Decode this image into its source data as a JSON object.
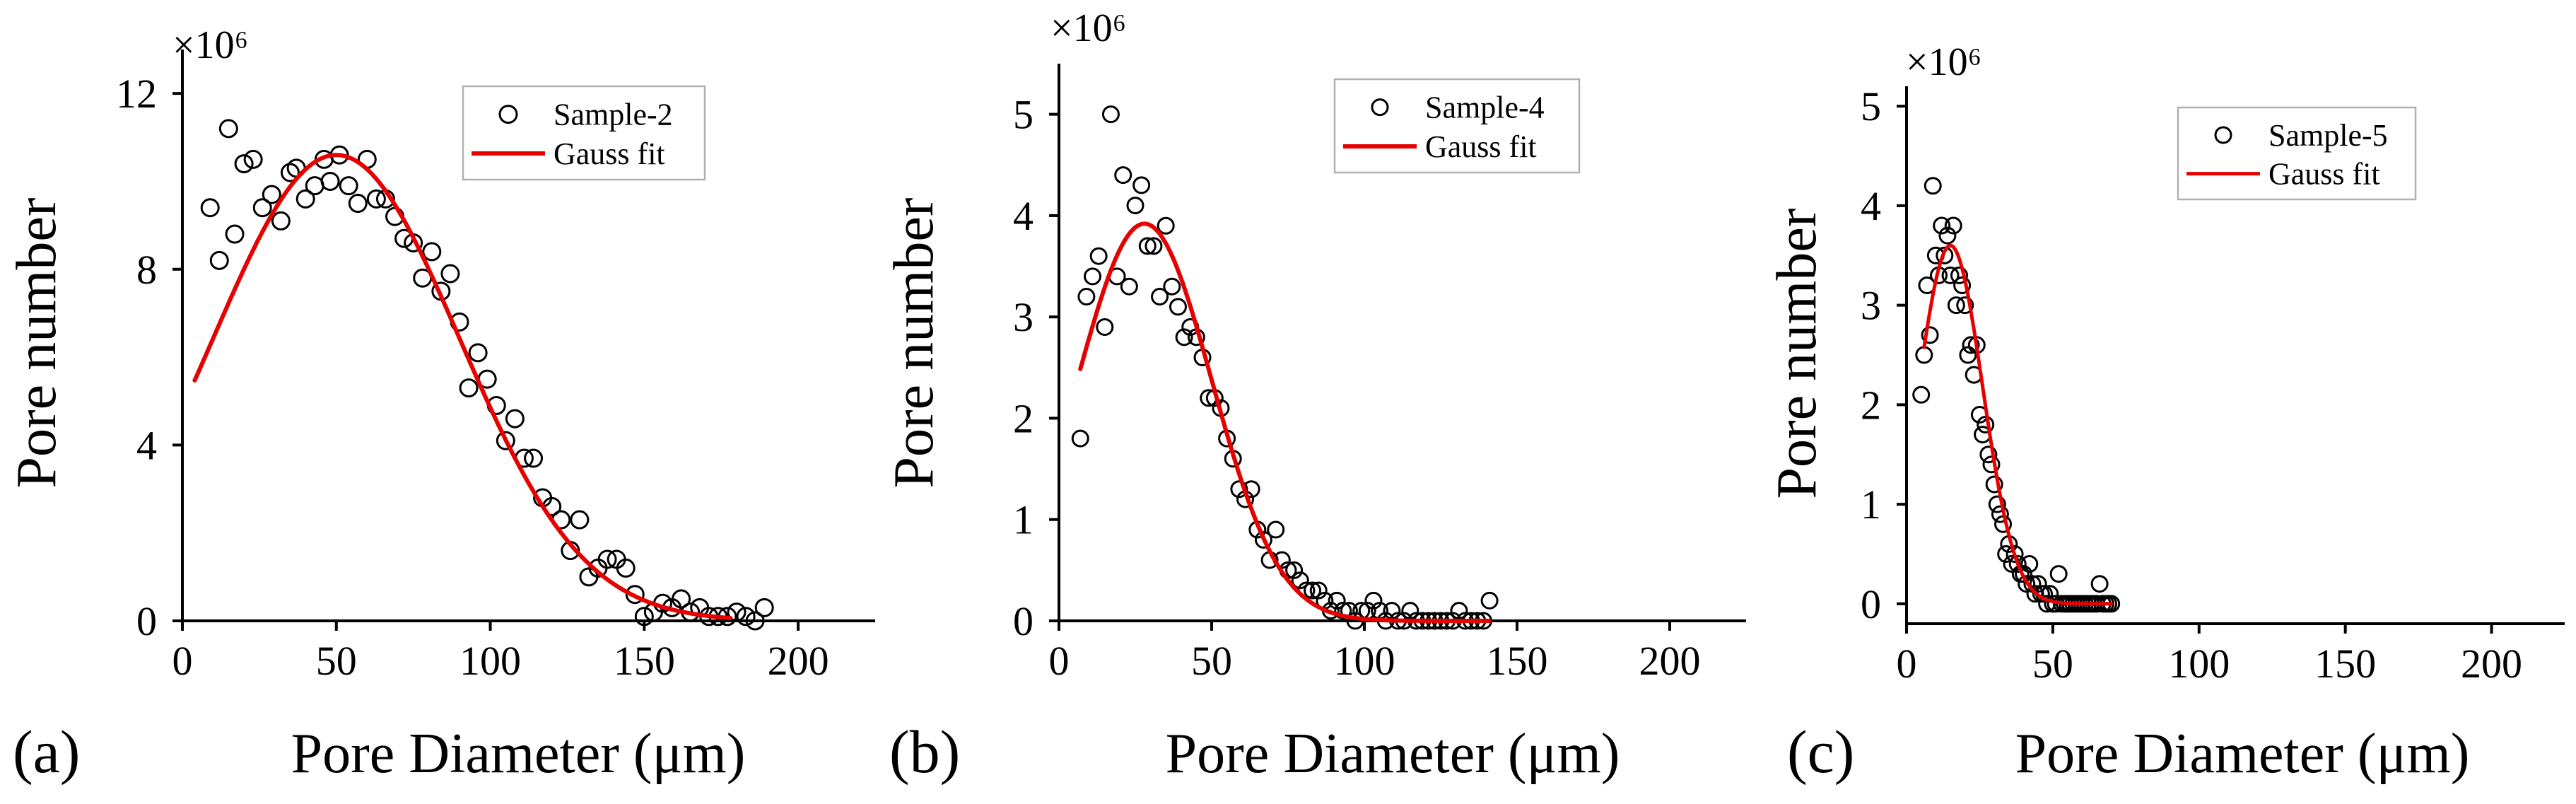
{
  "figure": {
    "colors": {
      "fit": "#e60000",
      "points": "#000000",
      "background": "#ffffff"
    }
  },
  "chart_data": [
    {
      "type": "scatter",
      "panel_label": "(a)",
      "xlabel": "Pore Diameter (μm)",
      "ylabel": "Pore number",
      "scale_label": "×10⁶",
      "xlim": [
        0,
        225
      ],
      "ylim": [
        0,
        13
      ],
      "xticks": [
        0,
        50,
        100,
        150,
        200
      ],
      "yticks": [
        0,
        4,
        8,
        12
      ],
      "legend": [
        "Sample-2",
        "Gauss fit"
      ],
      "legend_position": "top-right",
      "fit": {
        "amplitude": 10.6,
        "mean": 50,
        "sigma": 40,
        "x_start": 4,
        "x_end": 178
      },
      "series": [
        {
          "name": "Sample-2",
          "x": [
            9,
            12,
            15,
            17,
            20,
            23,
            26,
            29,
            32,
            35,
            37,
            40,
            43,
            46,
            48,
            51,
            54,
            57,
            60,
            63,
            66,
            69,
            72,
            75,
            78,
            81,
            84,
            87,
            90,
            93,
            96,
            99,
            102,
            105,
            108,
            111,
            114,
            117,
            120,
            123,
            126,
            129,
            132,
            135,
            138,
            141,
            144,
            147,
            150,
            153,
            156,
            159,
            162,
            165,
            168,
            171,
            174,
            177,
            180,
            183,
            186,
            189
          ],
          "y": [
            9.4,
            8.2,
            11.2,
            8.8,
            10.4,
            10.5,
            9.4,
            9.7,
            9.1,
            10.2,
            10.3,
            9.6,
            9.9,
            10.5,
            10.0,
            10.6,
            9.9,
            9.5,
            10.5,
            9.6,
            9.6,
            9.2,
            8.7,
            8.6,
            7.8,
            8.4,
            7.5,
            7.9,
            6.8,
            5.3,
            6.1,
            5.5,
            4.9,
            4.1,
            4.6,
            3.7,
            3.7,
            2.8,
            2.6,
            2.3,
            1.6,
            2.3,
            1.0,
            1.2,
            1.4,
            1.4,
            1.2,
            0.6,
            0.1,
            0.2,
            0.4,
            0.3,
            0.5,
            0.2,
            0.3,
            0.1,
            0.1,
            0.1,
            0.2,
            0.1,
            0.0,
            0.3
          ]
        }
      ]
    },
    {
      "type": "scatter",
      "panel_label": "(b)",
      "xlabel": "Pore Diameter (μm)",
      "ylabel": "Pore number",
      "scale_label": "×10⁶",
      "xlim": [
        0,
        225
      ],
      "ylim": [
        0,
        5.5
      ],
      "xticks": [
        0,
        50,
        100,
        150,
        200
      ],
      "yticks": [
        0,
        1,
        2,
        3,
        4,
        5
      ],
      "legend": [
        "Sample-4",
        "Gauss fit"
      ],
      "legend_position": "top-right",
      "fit": {
        "amplitude": 3.92,
        "mean": 28,
        "sigma": 22,
        "x_start": 7,
        "x_end": 141
      },
      "series": [
        {
          "name": "Sample-4",
          "x": [
            7,
            9,
            11,
            13,
            15,
            17,
            19,
            21,
            23,
            25,
            27,
            29,
            31,
            33,
            35,
            37,
            39,
            41,
            43,
            45,
            47,
            49,
            51,
            53,
            55,
            57,
            59,
            61,
            63,
            65,
            67,
            69,
            71,
            73,
            75,
            77,
            79,
            81,
            83,
            85,
            87,
            89,
            91,
            93,
            95,
            97,
            99,
            101,
            103,
            105,
            107,
            109,
            111,
            113,
            115,
            117,
            119,
            121,
            123,
            125,
            127,
            129,
            131,
            133,
            135,
            137,
            139,
            141
          ],
          "y": [
            1.8,
            3.2,
            3.4,
            3.6,
            2.9,
            5.0,
            3.4,
            4.4,
            3.3,
            4.1,
            4.3,
            3.7,
            3.7,
            3.2,
            3.9,
            3.3,
            3.1,
            2.8,
            2.9,
            2.8,
            2.6,
            2.2,
            2.2,
            2.1,
            1.8,
            1.6,
            1.3,
            1.2,
            1.3,
            0.9,
            0.8,
            0.6,
            0.9,
            0.6,
            0.5,
            0.5,
            0.4,
            0.3,
            0.3,
            0.3,
            0.2,
            0.1,
            0.2,
            0.1,
            0.1,
            0.0,
            0.1,
            0.1,
            0.2,
            0.1,
            0.0,
            0.1,
            0.0,
            0.0,
            0.1,
            0.0,
            0.0,
            0.0,
            0.0,
            0.0,
            0.0,
            0.0,
            0.1,
            0.0,
            0.0,
            0.0,
            0.0,
            0.2
          ]
        }
      ]
    },
    {
      "type": "scatter",
      "panel_label": "(c)",
      "xlabel": "Pore Diameter (μm)",
      "ylabel": "Pore number",
      "scale_label": "×10⁶",
      "xlim": [
        0,
        225
      ],
      "ylim": [
        -0.2,
        5.2
      ],
      "xticks": [
        0,
        50,
        100,
        150,
        200
      ],
      "yticks": [
        0,
        1,
        2,
        3,
        4,
        5
      ],
      "legend": [
        "Sample-5",
        "Gauss fit"
      ],
      "legend_position": "top-right",
      "fit": {
        "amplitude": 3.6,
        "mean": 15,
        "sigma": 11,
        "x_start": 6,
        "x_end": 70
      },
      "series": [
        {
          "name": "Sample-5",
          "x": [
            5,
            6,
            7,
            8,
            9,
            10,
            11,
            12,
            13,
            14,
            15,
            16,
            17,
            18,
            19,
            20,
            21,
            22,
            23,
            24,
            25,
            26,
            27,
            28,
            29,
            30,
            31,
            32,
            33,
            34,
            35,
            36,
            37,
            38,
            39,
            40,
            41,
            42,
            43,
            44,
            45,
            46,
            47,
            48,
            49,
            50,
            51,
            52,
            53,
            54,
            55,
            56,
            57,
            58,
            59,
            60,
            61,
            62,
            63,
            64,
            65,
            66,
            67,
            68,
            69,
            70
          ],
          "y": [
            2.1,
            2.5,
            3.2,
            2.7,
            4.2,
            3.5,
            3.3,
            3.8,
            3.5,
            3.7,
            3.3,
            3.8,
            3.0,
            3.3,
            3.2,
            3.0,
            2.5,
            2.6,
            2.3,
            2.6,
            1.9,
            1.7,
            1.8,
            1.5,
            1.4,
            1.2,
            1.0,
            0.9,
            0.8,
            0.5,
            0.6,
            0.4,
            0.5,
            0.4,
            0.3,
            0.3,
            0.2,
            0.4,
            0.2,
            0.1,
            0.2,
            0.1,
            0.1,
            0.0,
            0.1,
            0.0,
            0.0,
            0.3,
            0.0,
            0.0,
            0.0,
            0.0,
            0.0,
            0.0,
            0.0,
            0.0,
            0.0,
            0.0,
            0.0,
            0.0,
            0.0,
            0.2,
            0.0,
            0.0,
            0.0,
            0.0
          ]
        }
      ]
    }
  ]
}
